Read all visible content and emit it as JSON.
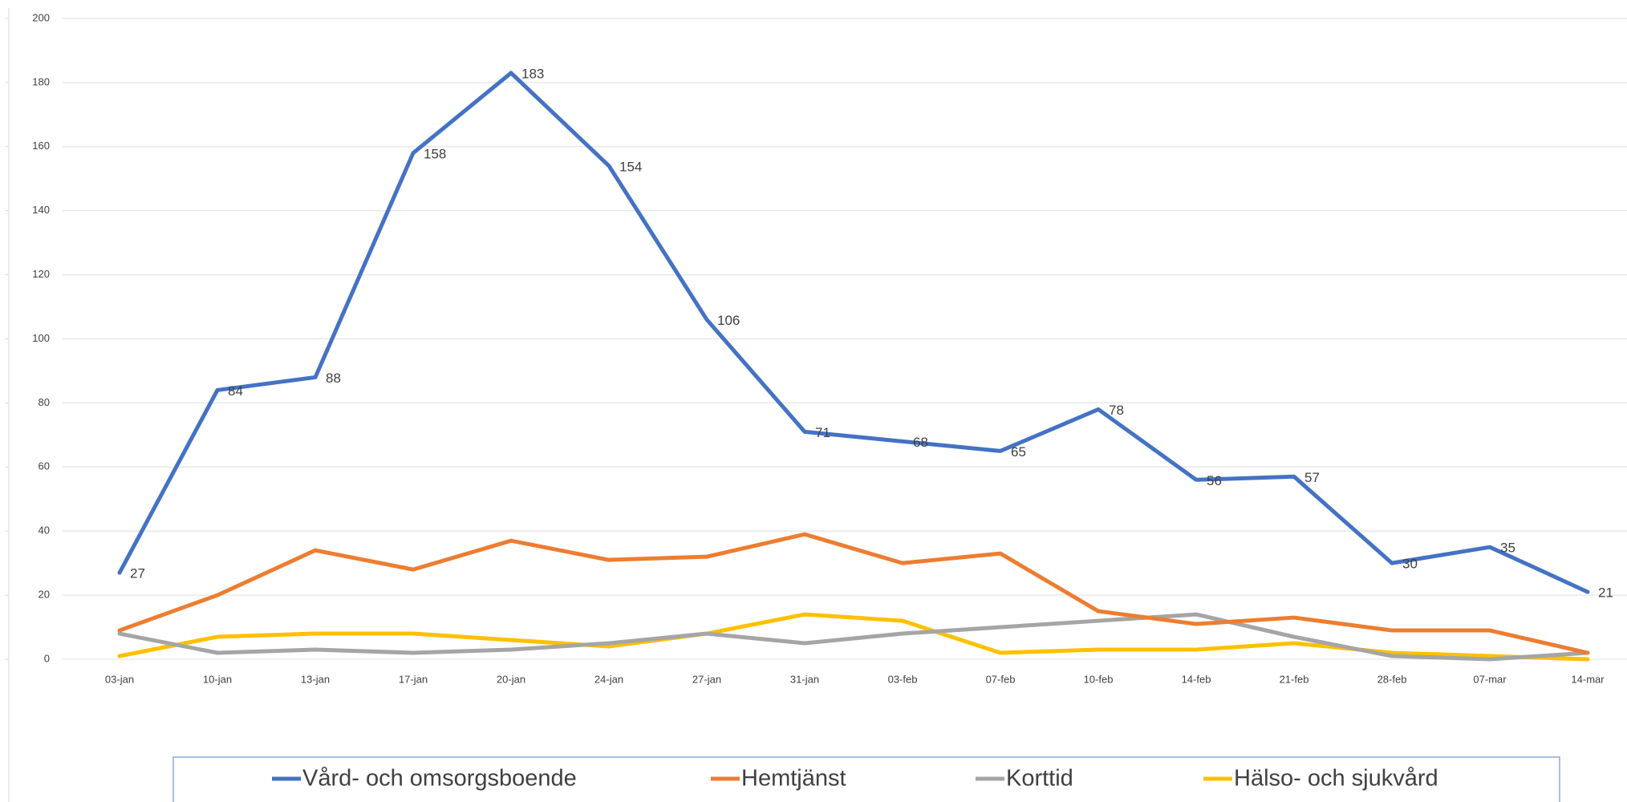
{
  "chart_data": {
    "type": "line",
    "categories": [
      "03-jan",
      "10-jan",
      "13-jan",
      "17-jan",
      "20-jan",
      "24-jan",
      "27-jan",
      "31-jan",
      "03-feb",
      "07-feb",
      "10-feb",
      "14-feb",
      "21-feb",
      "28-feb",
      "07-mar",
      "14-mar"
    ],
    "series": [
      {
        "name": "Vård- och omsorgsboende",
        "color": "#4472c4",
        "values": [
          27,
          84,
          88,
          158,
          183,
          154,
          106,
          71,
          68,
          65,
          78,
          56,
          57,
          30,
          35,
          21
        ],
        "data_labels": true
      },
      {
        "name": "Hemtjänst",
        "color": "#ed7d31",
        "values": [
          9,
          20,
          34,
          28,
          37,
          31,
          32,
          39,
          30,
          33,
          15,
          11,
          13,
          9,
          9,
          2
        ]
      },
      {
        "name": "Korttid",
        "color": "#a5a5a5",
        "values": [
          8,
          2,
          3,
          2,
          3,
          5,
          8,
          5,
          8,
          10,
          12,
          14,
          7,
          1,
          0,
          2
        ]
      },
      {
        "name": "Hälso- och sjukvård",
        "color": "#ffc000",
        "values": [
          1,
          7,
          8,
          8,
          6,
          4,
          8,
          14,
          12,
          2,
          3,
          3,
          5,
          2,
          1,
          0
        ]
      }
    ],
    "ylim": [
      0,
      200
    ],
    "yticks": [
      0,
      20,
      40,
      60,
      80,
      100,
      120,
      140,
      160,
      180,
      200
    ],
    "grid": true,
    "legend_position": "bottom"
  }
}
